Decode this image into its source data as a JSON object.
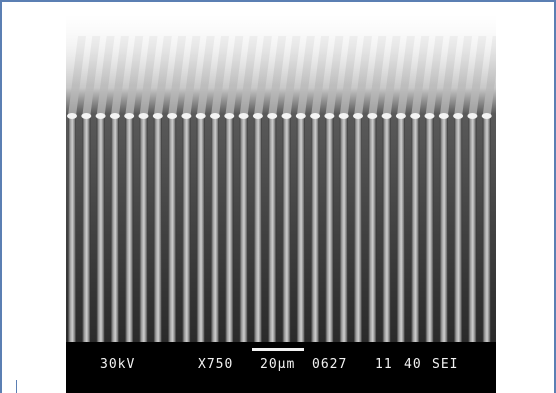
{
  "micrograph": {
    "accelerating_voltage": "30kV",
    "magnification": "X750",
    "scale_bar_value": 20,
    "scale_bar_label": "20μm",
    "image_id": "0627",
    "field_1": "11",
    "field_2": "40",
    "detector_mode": "SEI"
  },
  "colors": {
    "frame": "#5b7fb3",
    "databar_bg": "#000000",
    "databar_text": "#f2f2f2"
  }
}
